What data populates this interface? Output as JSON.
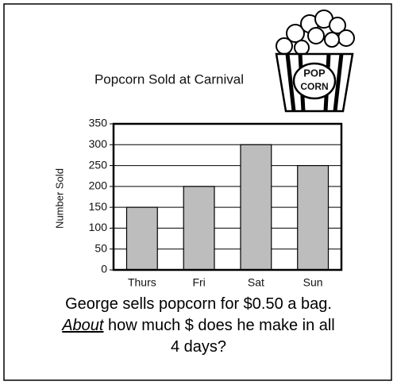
{
  "chart_data": {
    "type": "bar",
    "title": "Popcorn Sold at Carnival",
    "y_label": "Number Sold",
    "categories": [
      "Thurs",
      "Fri",
      "Sat",
      "Sun"
    ],
    "values": [
      150,
      200,
      300,
      250
    ],
    "color": "#bdbdbd",
    "ylim": [
      0,
      350
    ],
    "yticks": [
      0,
      50,
      100,
      150,
      200,
      250,
      300,
      350
    ],
    "grid": true
  },
  "icon_labels": [
    "POP",
    "CORN"
  ],
  "question": {
    "line1": "George sells popcorn for $0.50 a bag.",
    "emphasis": "About",
    "line2": " how much $ does he make in all",
    "line3": "4 days?"
  }
}
